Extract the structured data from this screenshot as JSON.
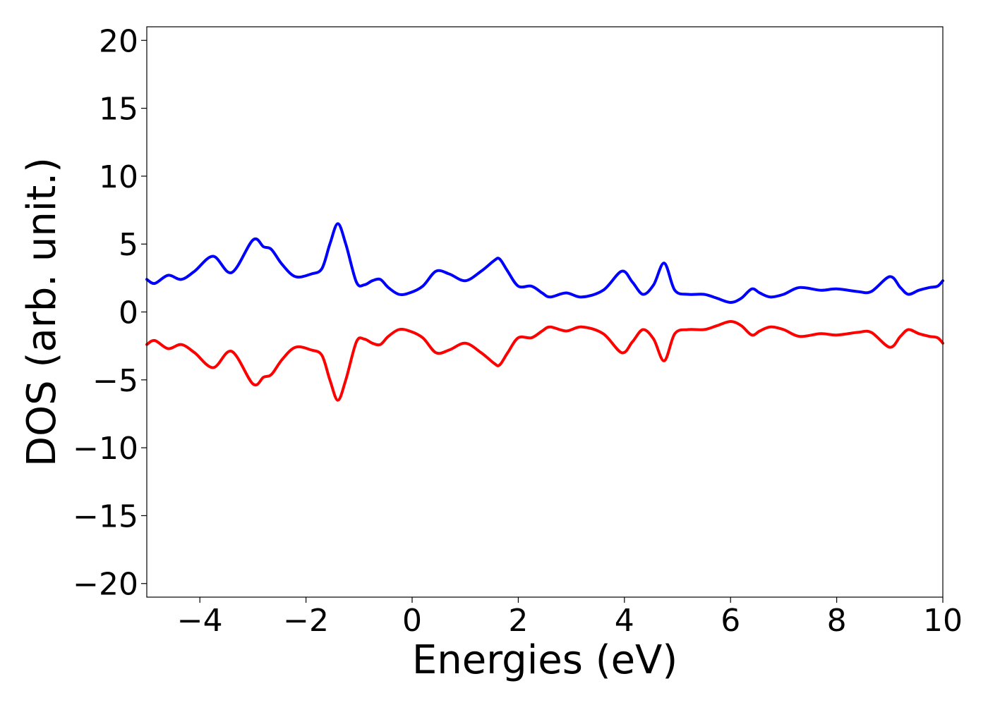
{
  "chart_data": {
    "type": "line",
    "title": "",
    "xlabel": "Energies (eV)",
    "ylabel": "DOS (arb. unit.)",
    "xlim": [
      -5,
      10
    ],
    "ylim": [
      -21,
      21
    ],
    "xticks": [
      -4,
      -2,
      0,
      2,
      4,
      6,
      8,
      10
    ],
    "yticks": [
      -20,
      -15,
      -10,
      -5,
      0,
      5,
      10,
      15,
      20
    ],
    "xtick_labels": [
      "−4",
      "−2",
      "0",
      "2",
      "4",
      "6",
      "8",
      "10"
    ],
    "ytick_labels": [
      "−20",
      "−15",
      "−10",
      "−5",
      "0",
      "5",
      "10",
      "15",
      "20"
    ],
    "grid": false,
    "legend": "none",
    "series": [
      {
        "color": "#0000ff",
        "x": [
          -5.0,
          -4.85,
          -4.6,
          -4.35,
          -4.1,
          -3.75,
          -3.4,
          -3.0,
          -2.8,
          -2.65,
          -2.45,
          -2.2,
          -1.9,
          -1.7,
          -1.55,
          -1.4,
          -1.25,
          -1.05,
          -0.9,
          -0.75,
          -0.6,
          -0.45,
          -0.25,
          -0.05,
          0.2,
          0.45,
          0.7,
          1.0,
          1.3,
          1.55,
          1.65,
          1.8,
          2.0,
          2.25,
          2.45,
          2.6,
          2.9,
          3.2,
          3.6,
          3.95,
          4.15,
          4.35,
          4.55,
          4.75,
          4.95,
          5.2,
          5.5,
          5.75,
          6.0,
          6.2,
          6.4,
          6.55,
          6.75,
          7.0,
          7.3,
          7.7,
          8.0,
          8.4,
          8.65,
          9.0,
          9.2,
          9.35,
          9.55,
          9.75,
          9.9,
          10.0
        ],
        "y": [
          2.4,
          2.1,
          2.7,
          2.4,
          3.0,
          4.1,
          2.9,
          5.3,
          4.8,
          4.6,
          3.5,
          2.6,
          2.8,
          3.2,
          5.0,
          6.5,
          5.0,
          2.2,
          2.0,
          2.3,
          2.4,
          1.8,
          1.3,
          1.4,
          1.9,
          3.0,
          2.8,
          2.3,
          3.0,
          3.8,
          3.9,
          3.0,
          1.9,
          1.9,
          1.4,
          1.1,
          1.4,
          1.1,
          1.6,
          3.0,
          2.2,
          1.3,
          2.0,
          3.6,
          1.6,
          1.3,
          1.3,
          1.0,
          0.7,
          1.0,
          1.7,
          1.4,
          1.1,
          1.3,
          1.8,
          1.6,
          1.7,
          1.5,
          1.5,
          2.6,
          1.8,
          1.3,
          1.6,
          1.8,
          1.9,
          2.3
        ]
      },
      {
        "color": "#ff0000",
        "x": [
          -5.0,
          -4.85,
          -4.6,
          -4.35,
          -4.1,
          -3.75,
          -3.4,
          -3.0,
          -2.8,
          -2.65,
          -2.45,
          -2.2,
          -1.9,
          -1.7,
          -1.55,
          -1.4,
          -1.25,
          -1.05,
          -0.9,
          -0.75,
          -0.6,
          -0.45,
          -0.25,
          -0.05,
          0.2,
          0.45,
          0.7,
          1.0,
          1.3,
          1.55,
          1.65,
          1.8,
          2.0,
          2.25,
          2.45,
          2.6,
          2.9,
          3.2,
          3.6,
          3.95,
          4.15,
          4.35,
          4.55,
          4.75,
          4.95,
          5.2,
          5.5,
          5.75,
          6.0,
          6.2,
          6.4,
          6.55,
          6.75,
          7.0,
          7.3,
          7.7,
          8.0,
          8.4,
          8.65,
          9.0,
          9.2,
          9.35,
          9.55,
          9.75,
          9.9,
          10.0
        ],
        "y": [
          -2.4,
          -2.1,
          -2.7,
          -2.4,
          -3.0,
          -4.1,
          -2.9,
          -5.3,
          -4.8,
          -4.6,
          -3.5,
          -2.6,
          -2.8,
          -3.2,
          -5.0,
          -6.5,
          -5.0,
          -2.2,
          -2.0,
          -2.3,
          -2.4,
          -1.8,
          -1.3,
          -1.4,
          -1.9,
          -3.0,
          -2.8,
          -2.3,
          -3.0,
          -3.8,
          -3.9,
          -3.0,
          -1.9,
          -1.9,
          -1.4,
          -1.1,
          -1.4,
          -1.1,
          -1.6,
          -3.0,
          -2.2,
          -1.3,
          -2.0,
          -3.6,
          -1.6,
          -1.3,
          -1.3,
          -1.0,
          -0.7,
          -1.0,
          -1.7,
          -1.4,
          -1.1,
          -1.3,
          -1.8,
          -1.6,
          -1.7,
          -1.5,
          -1.5,
          -2.6,
          -1.8,
          -1.3,
          -1.6,
          -1.8,
          -1.9,
          -2.3
        ]
      }
    ]
  }
}
